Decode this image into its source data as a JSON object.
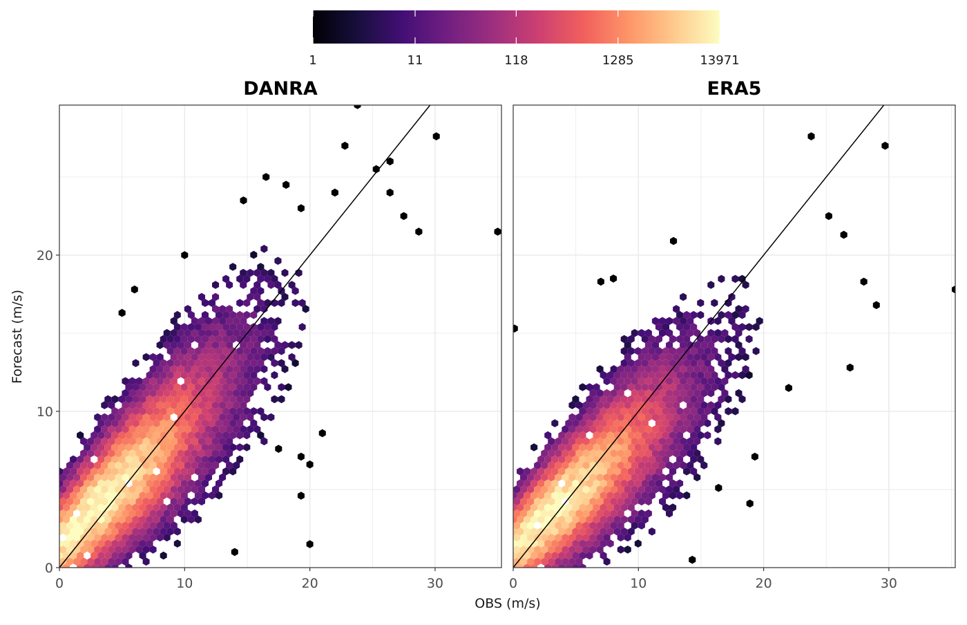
{
  "chart_data": {
    "type": "heatmap",
    "subtype": "hexbin",
    "xlabel": "OBS (m/s)",
    "ylabel": "Forecast (m/s)",
    "xlim": [
      0,
      35.3
    ],
    "ylim": [
      0,
      29.6
    ],
    "x_ticks": [
      0,
      10,
      20,
      30
    ],
    "y_ticks": [
      0,
      10,
      20
    ],
    "grid": true,
    "identity_line": {
      "slope": 1,
      "intercept": 0
    },
    "colorbar": {
      "position": "top",
      "scale": "log10",
      "palette": "magma",
      "tick_labels": [
        "1",
        "11",
        "118",
        "1285",
        "13971"
      ],
      "tick_values": [
        1,
        11,
        118,
        1285,
        13971
      ],
      "colors": [
        "#000004",
        "#180f3d",
        "#440f76",
        "#721f81",
        "#9e2f7f",
        "#cd4071",
        "#f1605d",
        "#fd9668",
        "#feca8d",
        "#fcfdbf"
      ]
    },
    "panels": [
      {
        "title": "DANRA",
        "ridge": {
          "intercept": 1.5,
          "slope": 0.78,
          "spread": 2.6,
          "peak_x": 2.5,
          "max_x": 24
        },
        "outliers": [
          [
            23.8,
            29.6
          ],
          [
            30.1,
            27.6
          ],
          [
            22.8,
            27.0
          ],
          [
            35.0,
            21.5
          ],
          [
            28.7,
            21.5
          ],
          [
            26.4,
            26.0
          ],
          [
            25.3,
            25.5
          ],
          [
            26.4,
            24.0
          ],
          [
            27.5,
            22.5
          ],
          [
            16.5,
            25.0
          ],
          [
            18.1,
            24.5
          ],
          [
            14.7,
            23.5
          ],
          [
            19.3,
            23.0
          ],
          [
            6.0,
            17.8
          ],
          [
            5.0,
            16.3
          ],
          [
            19.3,
            4.6
          ],
          [
            20.0,
            6.6
          ],
          [
            19.3,
            7.1
          ],
          [
            14.0,
            1.0
          ],
          [
            21.0,
            8.6
          ],
          [
            17.5,
            7.6
          ],
          [
            22.0,
            24.0
          ],
          [
            10.0,
            20.0
          ],
          [
            20.0,
            1.5
          ]
        ]
      },
      {
        "title": "ERA5",
        "ridge": {
          "intercept": 1.3,
          "slope": 0.72,
          "spread": 2.4,
          "peak_x": 2.5,
          "max_x": 24
        },
        "outliers": [
          [
            23.8,
            27.6
          ],
          [
            29.7,
            27.0
          ],
          [
            35.3,
            17.8
          ],
          [
            28.0,
            18.3
          ],
          [
            29.0,
            16.8
          ],
          [
            26.9,
            12.8
          ],
          [
            25.2,
            22.5
          ],
          [
            26.4,
            21.3
          ],
          [
            7.0,
            18.3
          ],
          [
            12.8,
            20.9
          ],
          [
            14.3,
            0.5
          ],
          [
            18.9,
            4.1
          ],
          [
            16.4,
            5.1
          ],
          [
            19.3,
            7.1
          ],
          [
            0.1,
            15.3
          ],
          [
            22.0,
            11.5
          ],
          [
            8.0,
            18.5
          ]
        ]
      }
    ]
  }
}
